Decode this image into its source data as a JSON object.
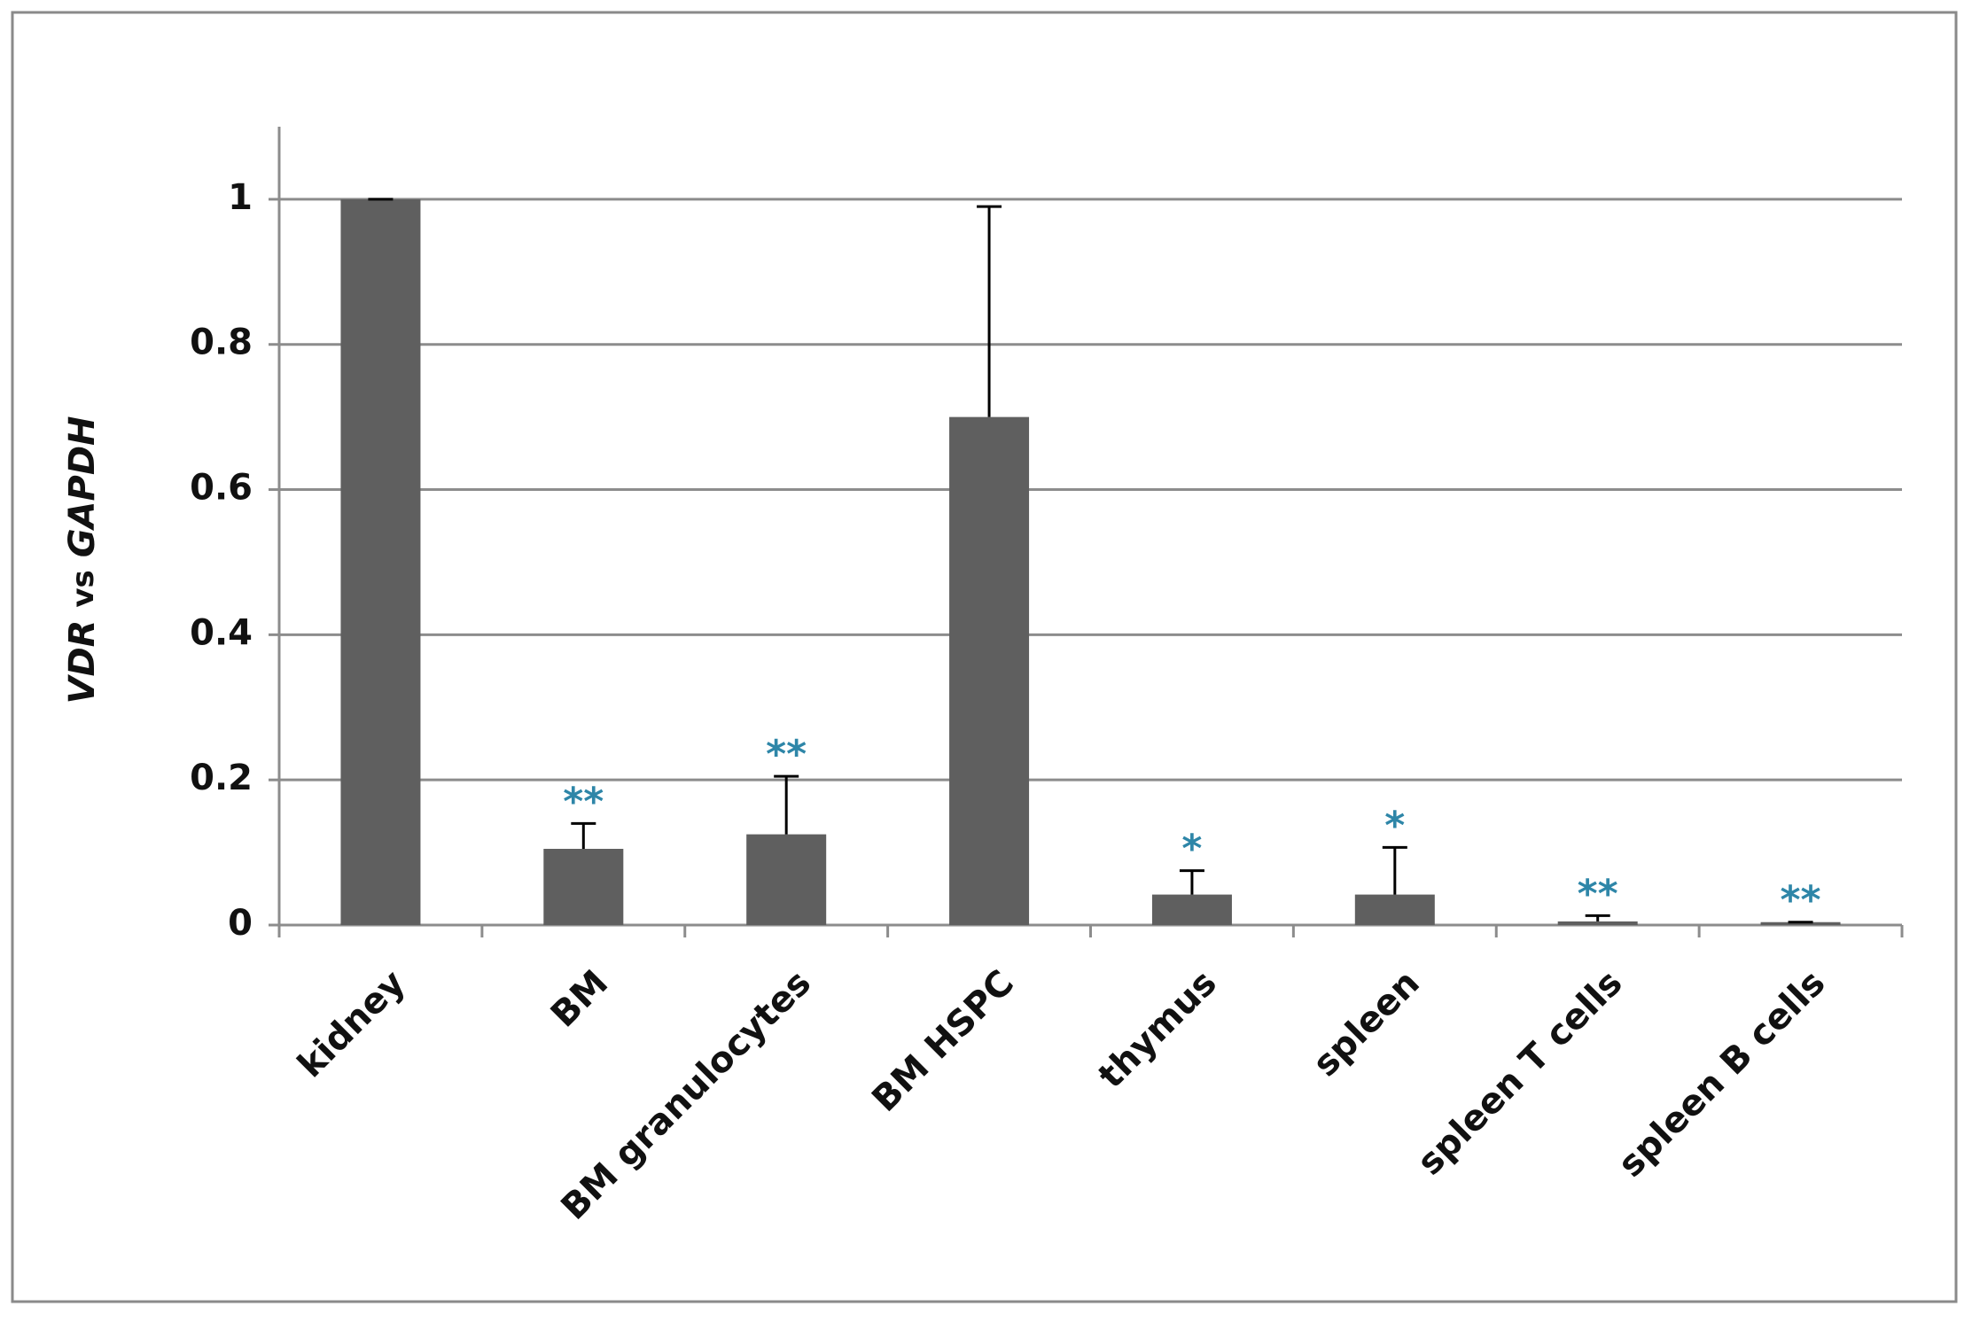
{
  "chart_data": {
    "type": "bar",
    "ylabel": [
      "VDR",
      "vs",
      "GAPDH"
    ],
    "categories": [
      "kidney",
      "BM",
      "BM granulocytes",
      "BM HSPC",
      "thymus",
      "spleen",
      "spleen T cells",
      "spleen B cells"
    ],
    "values": [
      1.0,
      0.105,
      0.125,
      0.7,
      0.042,
      0.042,
      0.005,
      0.004
    ],
    "errors": [
      0.0,
      0.035,
      0.08,
      0.29,
      0.033,
      0.065,
      0.008,
      0.0
    ],
    "annotations": [
      null,
      "**",
      "**",
      null,
      "*",
      "*",
      "**",
      "**"
    ],
    "color": "#5f5f5f",
    "annotation_color": "#2e86a8",
    "ylim": [
      0,
      1.1
    ],
    "yticks": [
      0,
      0.2,
      0.4,
      0.6,
      0.8,
      1
    ],
    "grid": true
  }
}
